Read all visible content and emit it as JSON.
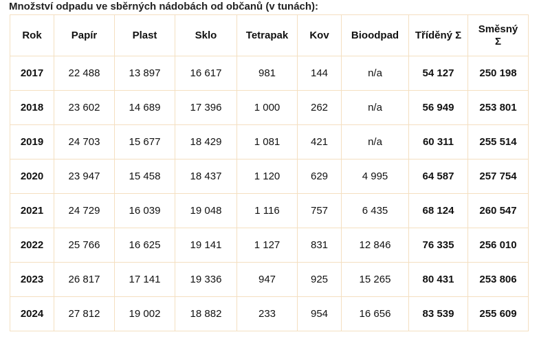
{
  "caption": "Množství odpadu ve sběrných nádobách od občanů (v tunách):",
  "table": {
    "headers": [
      "Rok",
      "Papír",
      "Plast",
      "Sklo",
      "Tetrapak",
      "Kov",
      "Bioodpad",
      "Tříděný Σ",
      "Směsný Σ"
    ],
    "rows": [
      [
        "2017",
        "22 488",
        "13 897",
        "16 617",
        "981",
        "144",
        "n/a",
        "54 127",
        "250 198"
      ],
      [
        "2018",
        "23 602",
        "14 689",
        "17 396",
        "1 000",
        "262",
        "n/a",
        "56 949",
        "253 801"
      ],
      [
        "2019",
        "24 703",
        "15 677",
        "18 429",
        "1 081",
        "421",
        "n/a",
        "60 311",
        "255 514"
      ],
      [
        "2020",
        "23 947",
        "15 458",
        "18 437",
        "1 120",
        "629",
        "4 995",
        "64 587",
        "257 754"
      ],
      [
        "2021",
        "24 729",
        "16 039",
        "19 048",
        "1 116",
        "757",
        "6 435",
        "68 124",
        "260 547"
      ],
      [
        "2022",
        "25 766",
        "16 625",
        "19 141",
        "1 127",
        "831",
        "12 846",
        "76 335",
        "256 010"
      ],
      [
        "2023",
        "26 817",
        "17 141",
        "19 336",
        "947",
        "925",
        "15 265",
        "80 431",
        "253 806"
      ],
      [
        "2024",
        "27 812",
        "19 002",
        "18 882",
        "233",
        "954",
        "16 656",
        "83 539",
        "255 609"
      ]
    ]
  },
  "colors": {
    "border": "#f4dfc0",
    "text": "#111111"
  }
}
